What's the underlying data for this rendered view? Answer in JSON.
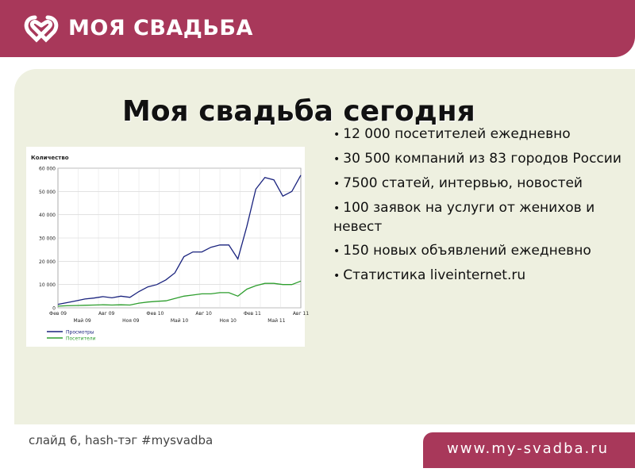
{
  "header": {
    "logo_text": "МОЯ СВАДЬБА",
    "brand_color": "#a8385a",
    "logo_icon": "interlocked-rings-icon"
  },
  "slide": {
    "title": "Моя свадьба сегодня",
    "bullets": [
      "12 000 посетителей ежедневно",
      "30 500 компаний из 83 городов России",
      "7500 статей, интервью, новостей",
      "100 заявок на услуги от женихов и невест",
      "150 новых объявлений ежедневно",
      "Статистика liveinternet.ru"
    ]
  },
  "footer": {
    "caption": "слайд 6, hash-тэг #mysvadba",
    "url": "www.my-svadba.ru"
  },
  "chart_data": {
    "type": "line",
    "ylabel": "Количество",
    "ylim": [
      0,
      60000
    ],
    "yticks": [
      "0",
      "10 000",
      "20 000",
      "30 000",
      "40 000",
      "50 000",
      "60 000"
    ],
    "xticks_top": [
      "Фев 09",
      "Авг 09",
      "Фев 10",
      "Авг 10",
      "Фев 11",
      "Авг 11"
    ],
    "xticks_bottom": [
      "Май 09",
      "Ноя 09",
      "Май 10",
      "Ноя 10",
      "Май 11"
    ],
    "grid": true,
    "legend_position": "bottom-left",
    "series": [
      {
        "name": "Просмотры",
        "color": "#1a237e",
        "values": [
          1500,
          2200,
          3000,
          3800,
          4200,
          4800,
          4300,
          5000,
          4500,
          7000,
          9000,
          10000,
          12000,
          15000,
          22000,
          24000,
          24000,
          26000,
          27000,
          27000,
          21000,
          35000,
          51000,
          56000,
          55000,
          48000,
          50000,
          57000
        ]
      },
      {
        "name": "Посетители",
        "color": "#2e9e2e",
        "values": [
          700,
          900,
          1000,
          1100,
          1200,
          1300,
          1200,
          1300,
          1200,
          2000,
          2500,
          2800,
          3000,
          4000,
          5000,
          5500,
          6000,
          6000,
          6500,
          6500,
          5000,
          8000,
          9500,
          10500,
          10500,
          10000,
          10000,
          11500
        ]
      }
    ]
  }
}
